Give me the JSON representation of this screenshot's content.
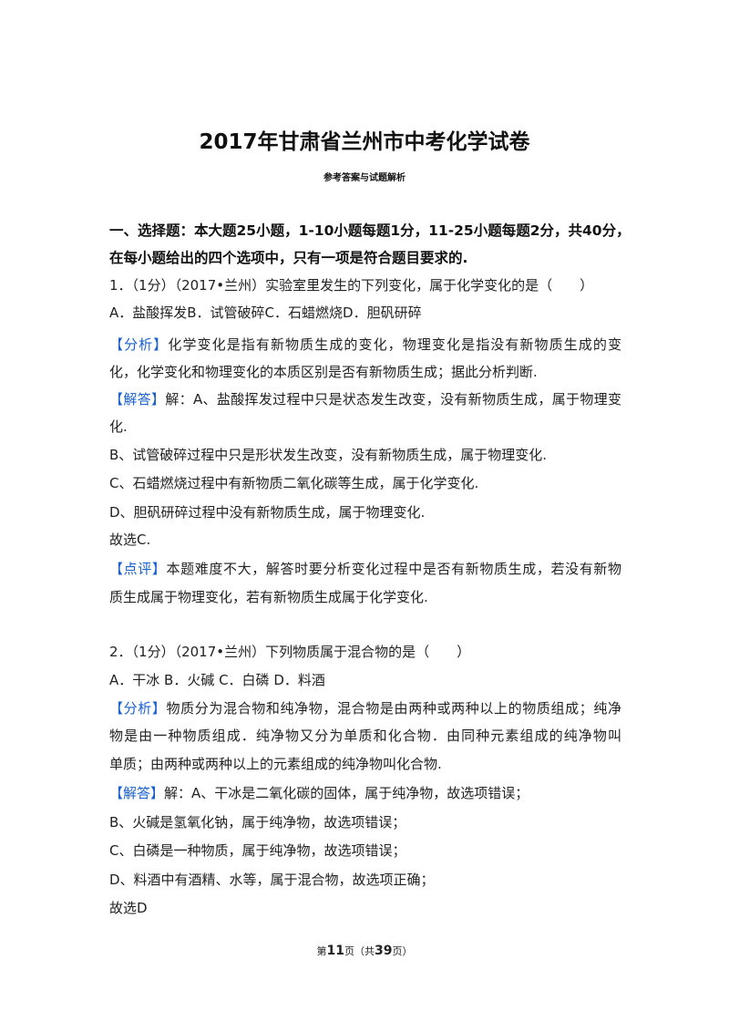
{
  "header": {
    "title": "2017年甘肃省兰州市中考化学试卷",
    "subtitle": "参考答案与试题解析"
  },
  "section": {
    "line1": "一、选择题：本大题25小题，1-10小题每题1分，11-25小题每题2分，共40分，",
    "line2": "在每小题给出的四个选项中，只有一项是符合题目要求的."
  },
  "tags": {
    "analysis": "【分析】",
    "answer": "【解答】",
    "comment": "【点评】"
  },
  "q1": {
    "stem": "1．（1分）（2017•兰州）实验室里发生的下列变化，属于化学变化的是（　　）",
    "options": "A．盐酸挥发B．试管破碎C．石蜡燃烧D．胆矾研碎",
    "analysis": [
      "化学变化是指有新物质生成的变化，物理变化是指没有新物质生成的变",
      "化，化学变化和物理变化的本质区别是否有新物质生成；据此分析判断."
    ],
    "answer": [
      "解：A、盐酸挥发过程中只是状态发生改变，没有新物质生成，属于物理变",
      "化.",
      "B、试管破碎过程中只是形状发生改变，没有新物质生成，属于物理变化.",
      "C、石蜡燃烧过程中有新物质二氧化碳等生成，属于化学变化.",
      "D、胆矾研碎过程中没有新物质生成，属于物理变化.",
      "故选C."
    ],
    "comment": [
      "本题难度不大，解答时要分析变化过程中是否有新物质生成，若没有新物",
      "质生成属于物理变化，若有新物质生成属于化学变化."
    ]
  },
  "q2": {
    "stem": "2．（1分）（2017•兰州）下列物质属于混合物的是（　　）",
    "options": "A．干冰 B．火碱 C．白磷 D．料酒",
    "analysis": [
      "物质分为混合物和纯净物，混合物是由两种或两种以上的物质组成；纯净",
      "物是由一种物质组成．纯净物又分为单质和化合物．由同种元素组成的纯净物叫",
      "单质；由两种或两种以上的元素组成的纯净物叫化合物."
    ],
    "answer": [
      "解：A、干冰是二氧化碳的固体，属于纯净物，故选项错误；",
      "B、火碱是氢氧化钠，属于纯净物，故选项错误；",
      "C、白磷是一种物质，属于纯净物，故选项错误；",
      "D、料酒中有酒精、水等，属于混合物，故选项正确；",
      "故选D"
    ]
  },
  "footer": {
    "pre": "第",
    "page": "11",
    "mid": "页（共",
    "total": "39",
    "post": "页）"
  }
}
